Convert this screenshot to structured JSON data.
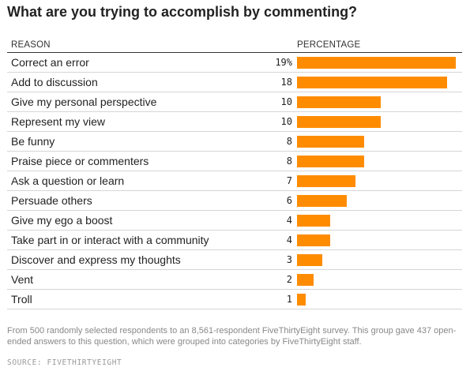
{
  "chart_data": {
    "type": "bar",
    "orientation": "horizontal",
    "title": "What are you trying to accomplish by commenting?",
    "column_headers": {
      "category": "REASON",
      "value": "PERCENTAGE"
    },
    "categories": [
      "Correct an error",
      "Add to discussion",
      "Give my personal perspective",
      "Represent my view",
      "Be funny",
      "Praise piece or commenters",
      "Ask a question or learn",
      "Persuade others",
      "Give my ego a boost",
      "Take part in or interact with a community",
      "Discover and express my thoughts",
      "Vent",
      "Troll"
    ],
    "values": [
      19,
      18,
      10,
      10,
      8,
      8,
      7,
      6,
      4,
      4,
      3,
      2,
      1
    ],
    "value_labels": [
      "19%",
      "18",
      "10",
      "10",
      "8",
      "8",
      "7",
      "6",
      "4",
      "4",
      "3",
      "2",
      "1"
    ],
    "xlim": [
      0,
      19
    ],
    "bar_color": "#ff8c00",
    "note": "From 500 randomly selected respondents to an 8,561-respondent FiveThirtyEight survey. This group gave 437 open-ended answers to this question, which were grouped into categories by FiveThirtyEight staff.",
    "source": "SOURCE: FIVETHIRTYEIGHT"
  }
}
